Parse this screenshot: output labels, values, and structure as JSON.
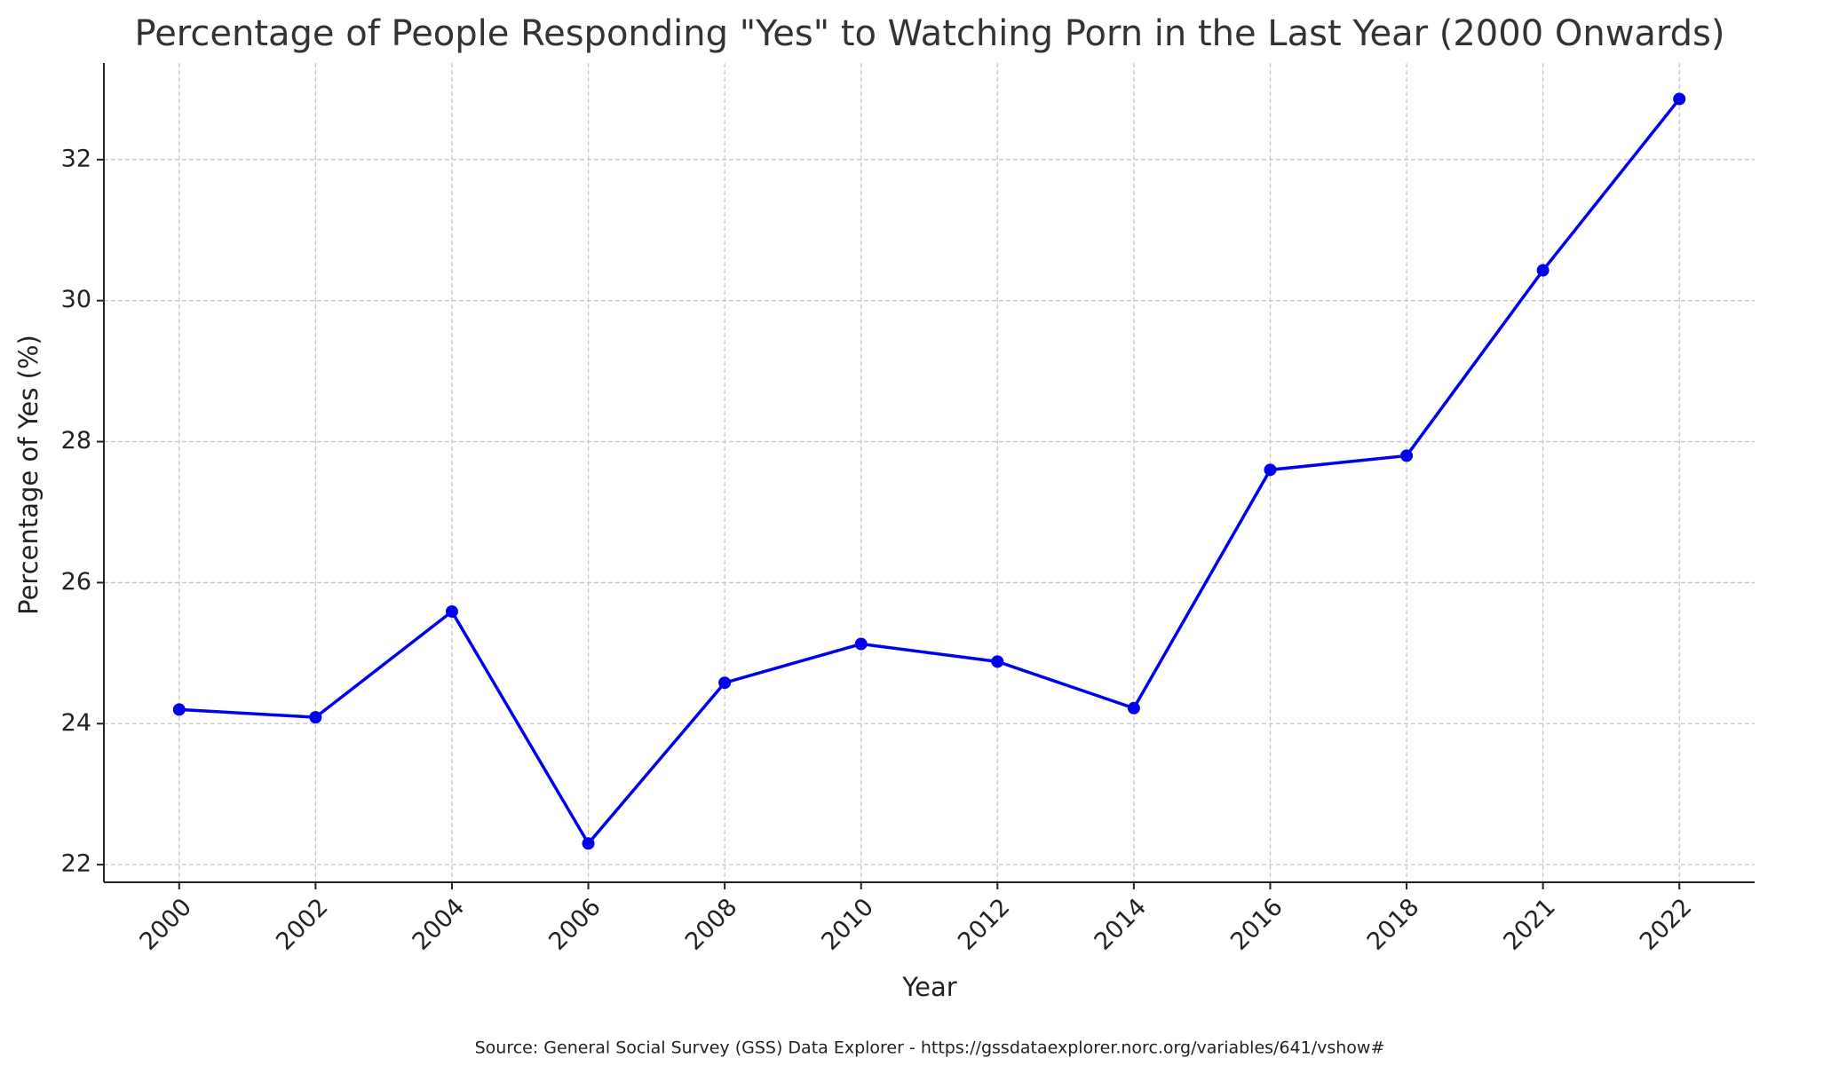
{
  "chart_data": {
    "type": "line",
    "title": "Percentage of People Responding \"Yes\" to Watching Porn in the Last Year (2000 Onwards)",
    "x_label": "Year",
    "y_label": "Percentage of Yes (%)",
    "source": "Source: General Social Survey (GSS) Data Explorer - https://gssdataexplorer.norc.org/variables/641/vshow#",
    "categories": [
      "2000",
      "2002",
      "2004",
      "2006",
      "2008",
      "2010",
      "2012",
      "2014",
      "2016",
      "2018",
      "2021",
      "2022"
    ],
    "series": [
      {
        "name": "Yes",
        "color": "#0000ee",
        "values": [
          24.2,
          24.09,
          25.59,
          22.3,
          24.58,
          25.13,
          24.88,
          24.22,
          27.6,
          27.8,
          30.43,
          32.86
        ]
      }
    ],
    "ylim": [
      21.75,
      33.37
    ],
    "yticks": [
      22,
      24,
      26,
      28,
      30,
      32
    ],
    "grid": true
  }
}
